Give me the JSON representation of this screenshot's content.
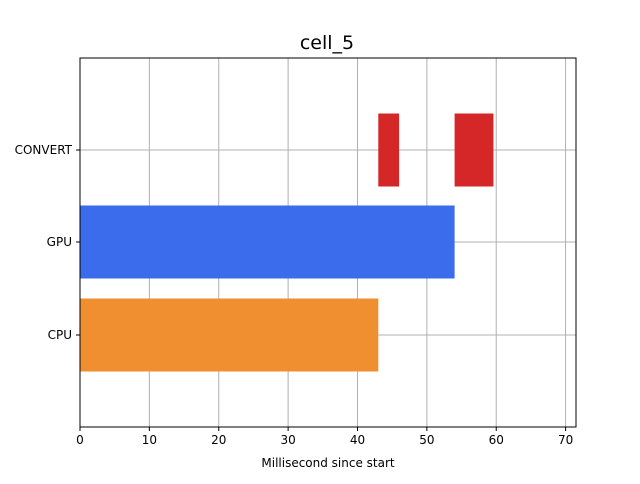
{
  "chart_data": {
    "type": "bar",
    "orientation": "horizontal",
    "title": "cell_5",
    "xlabel": "Millisecond since start",
    "ylabel": "",
    "xlim": [
      0,
      71.5
    ],
    "xticks": [
      0,
      10,
      20,
      30,
      40,
      50,
      60,
      70
    ],
    "grid": true,
    "categories": [
      "CPU",
      "GPU",
      "CONVERT"
    ],
    "segments": [
      {
        "category": "CPU",
        "start": 0,
        "end": 43,
        "color": "#ef8f2f"
      },
      {
        "category": "GPU",
        "start": 0,
        "end": 54,
        "color": "#3a6ceb"
      },
      {
        "category": "CONVERT",
        "start": 43,
        "end": 46,
        "color": "#d62728"
      },
      {
        "category": "CONVERT",
        "start": 54,
        "end": 59.6,
        "color": "#d62728"
      }
    ],
    "colors": {
      "cpu": "#ef8f2f",
      "gpu": "#3a6ceb",
      "convert": "#d62728",
      "grid": "#b0b0b0",
      "axis": "#000000"
    }
  }
}
